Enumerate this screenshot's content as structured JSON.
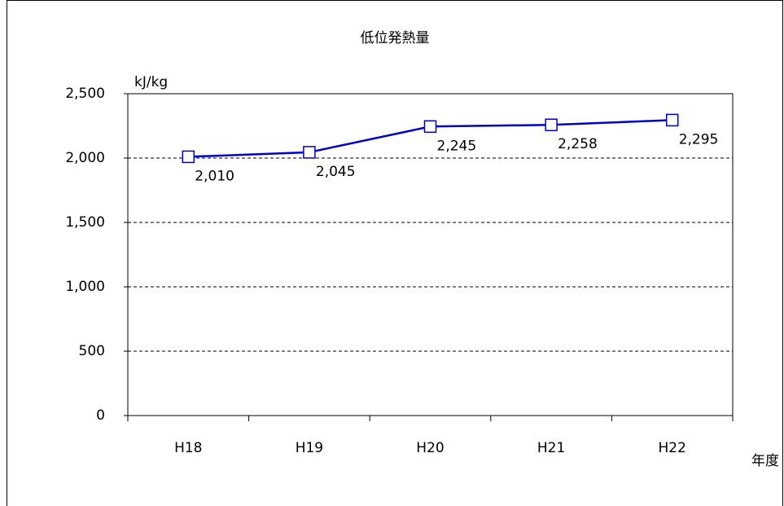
{
  "chart_data": {
    "type": "line",
    "title": "低位発熱量",
    "y_label": "kJ/kg",
    "x_label": "年度",
    "categories": [
      "H18",
      "H19",
      "H20",
      "H21",
      "H22"
    ],
    "series": [
      {
        "name": "低位発熱量",
        "color": "#0000cc",
        "values": [
          2010,
          2045,
          2245,
          2258,
          2295
        ],
        "value_labels": [
          "2,010",
          "2,045",
          "2,245",
          "2,258",
          "2,295"
        ]
      }
    ],
    "ylim": [
      0,
      2500
    ],
    "yticks": [
      0,
      500,
      {
        "value": 1000,
        "label": "1,000"
      },
      {
        "value": 1500,
        "label": "1,500"
      },
      {
        "value": 2000,
        "label": "2,000"
      },
      {
        "value": 2500,
        "label": "2,500"
      }
    ],
    "grid": true
  }
}
